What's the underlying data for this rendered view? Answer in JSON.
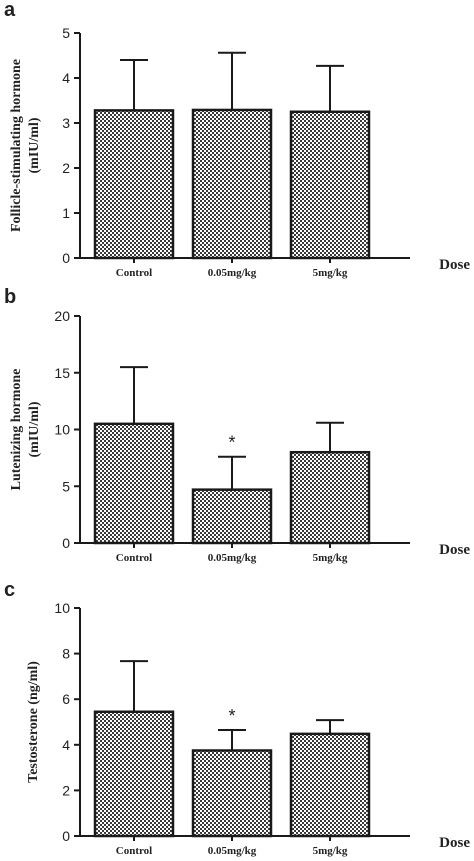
{
  "chart_data": [
    {
      "type": "bar",
      "panel": "a",
      "categories": [
        "Control",
        "0.05mg/kg",
        "5mg/kg"
      ],
      "values": [
        3.28,
        3.29,
        3.25
      ],
      "errors": [
        1.12,
        1.27,
        1.02
      ],
      "significance": [
        "",
        "",
        ""
      ],
      "ylabel": [
        "Follicle-stimulating hormone",
        "(mIU/ml)"
      ],
      "xlabel": "Dose",
      "ylim": [
        0,
        5
      ],
      "yticks": [
        0,
        1,
        2,
        3,
        4,
        5
      ],
      "ytick_labels": [
        "0",
        "1",
        "2",
        "3",
        "4",
        "5"
      ],
      "grid": false
    },
    {
      "type": "bar",
      "panel": "b",
      "categories": [
        "Control",
        "0.05mg/kg",
        "5mg/kg"
      ],
      "values": [
        10.5,
        4.7,
        8.0
      ],
      "errors": [
        5.0,
        2.9,
        2.6
      ],
      "significance": [
        "",
        "*",
        ""
      ],
      "ylabel": [
        "Lutenizing hormone",
        "(mIU/ml)"
      ],
      "xlabel": "Dose",
      "ylim": [
        0,
        20
      ],
      "yticks": [
        0,
        5,
        10,
        15,
        20
      ],
      "ytick_labels": [
        "0",
        "5",
        "10",
        "15",
        "20"
      ],
      "grid": false
    },
    {
      "type": "bar",
      "panel": "c",
      "categories": [
        "Control",
        "0.05mg/kg",
        "5mg/kg"
      ],
      "values": [
        5.45,
        3.75,
        4.48
      ],
      "errors": [
        2.22,
        0.9,
        0.6
      ],
      "significance": [
        "",
        "*",
        ""
      ],
      "ylabel": [
        "Testosterone  (ng/ml)"
      ],
      "xlabel": "Dose",
      "ylim": [
        0,
        10
      ],
      "yticks": [
        0,
        2,
        4,
        6,
        8,
        10
      ],
      "ytick_labels": [
        "0",
        "2",
        "4",
        "6",
        "8",
        "10"
      ],
      "grid": false
    }
  ],
  "style": {
    "bar_fill": "#9a9a9a",
    "bar_edge": "#1a1a1a",
    "axis_color": "#1a1a1a"
  }
}
